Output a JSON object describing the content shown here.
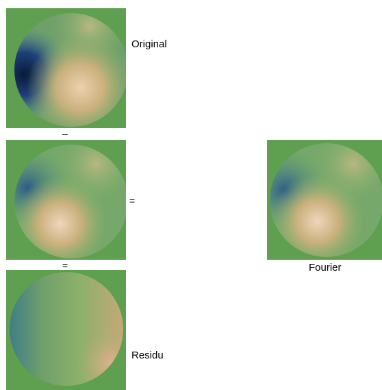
{
  "labels": {
    "original": "Original",
    "fourier": "Fourier",
    "residu": "Residu"
  },
  "operators": {
    "minus": "–",
    "equals_right": "=",
    "equals_below": "="
  },
  "colors": {
    "panel_background": "#5fa050",
    "low_value": "#1a2a5c",
    "mid_value": "#5f9a5a",
    "high_value": "#e8c7a6"
  }
}
